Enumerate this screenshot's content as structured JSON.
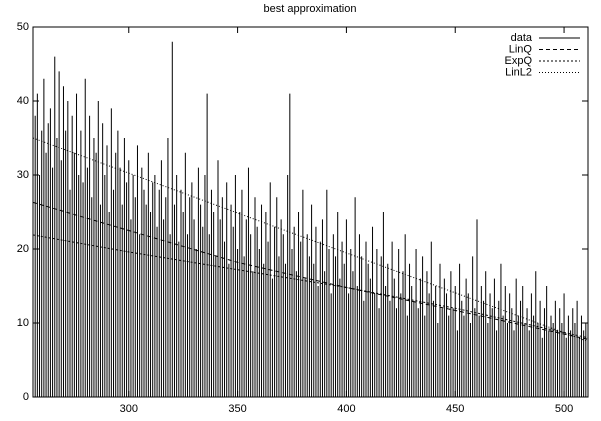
{
  "chart_data": {
    "type": "impulse-line",
    "title": "best approximation",
    "xlim": [
      256,
      511
    ],
    "ylim": [
      0,
      50
    ],
    "xticks": [
      300,
      350,
      400,
      450,
      500
    ],
    "yticks": [
      0,
      10,
      20,
      30,
      40,
      50
    ],
    "legend": "top-right",
    "series": [
      {
        "name": "data",
        "color": "#000000",
        "style": "impulses",
        "x": [
          256,
          257,
          258,
          259,
          260,
          261,
          262,
          263,
          264,
          265,
          266,
          267,
          268,
          269,
          270,
          271,
          272,
          273,
          274,
          275,
          276,
          277,
          278,
          279,
          280,
          281,
          282,
          283,
          284,
          285,
          286,
          287,
          288,
          289,
          290,
          291,
          292,
          293,
          294,
          295,
          296,
          297,
          298,
          299,
          300,
          301,
          302,
          303,
          304,
          305,
          306,
          307,
          308,
          309,
          310,
          311,
          312,
          313,
          314,
          315,
          316,
          317,
          318,
          319,
          320,
          321,
          322,
          323,
          324,
          325,
          326,
          327,
          328,
          329,
          330,
          331,
          332,
          333,
          334,
          335,
          336,
          337,
          338,
          339,
          340,
          341,
          342,
          343,
          344,
          345,
          346,
          347,
          348,
          349,
          350,
          351,
          352,
          353,
          354,
          355,
          356,
          357,
          358,
          359,
          360,
          361,
          362,
          363,
          364,
          365,
          366,
          367,
          368,
          369,
          370,
          371,
          372,
          373,
          374,
          375,
          376,
          377,
          378,
          379,
          380,
          381,
          382,
          383,
          384,
          385,
          386,
          387,
          388,
          389,
          390,
          391,
          392,
          393,
          394,
          395,
          396,
          397,
          398,
          399,
          400,
          401,
          402,
          403,
          404,
          405,
          406,
          407,
          408,
          409,
          410,
          411,
          412,
          413,
          414,
          415,
          416,
          417,
          418,
          419,
          420,
          421,
          422,
          423,
          424,
          425,
          426,
          427,
          428,
          429,
          430,
          431,
          432,
          433,
          434,
          435,
          436,
          437,
          438,
          439,
          440,
          441,
          442,
          443,
          444,
          445,
          446,
          447,
          448,
          449,
          450,
          451,
          452,
          453,
          454,
          455,
          456,
          457,
          458,
          459,
          460,
          461,
          462,
          463,
          464,
          465,
          466,
          467,
          468,
          469,
          470,
          471,
          472,
          473,
          474,
          475,
          476,
          477,
          478,
          479,
          480,
          481,
          482,
          483,
          484,
          485,
          486,
          487,
          488,
          489,
          490,
          491,
          492,
          493,
          494,
          495,
          496,
          497,
          498,
          499,
          500,
          501,
          502,
          503,
          504,
          505,
          506,
          507,
          508,
          509,
          510,
          511
        ],
        "values": [
          44,
          38,
          41,
          30,
          36,
          43,
          33,
          37,
          39,
          31,
          46,
          35,
          44,
          32,
          42,
          36,
          40,
          28,
          38,
          33,
          41,
          30,
          36,
          29,
          43,
          31,
          38,
          27,
          35,
          33,
          40,
          26,
          37,
          30,
          34,
          25,
          39,
          28,
          33,
          36,
          31,
          26,
          35,
          29,
          32,
          24,
          30,
          27,
          34,
          22,
          31,
          28,
          26,
          33,
          25,
          29,
          30,
          23,
          28,
          32,
          24,
          27,
          35,
          22,
          48,
          26,
          30,
          21,
          28,
          25,
          33,
          22,
          27,
          29,
          24,
          20,
          31,
          26,
          23,
          30,
          41,
          22,
          28,
          25,
          19,
          32,
          24,
          27,
          21,
          29,
          18,
          26,
          23,
          30,
          20,
          25,
          28,
          19,
          24,
          31,
          22,
          17,
          27,
          23,
          20,
          26,
          18,
          25,
          21,
          29,
          16,
          23,
          27,
          19,
          24,
          22,
          18,
          30,
          41,
          20,
          23,
          17,
          25,
          21,
          28,
          16,
          22,
          19,
          26,
          18,
          23,
          15,
          21,
          24,
          17,
          28,
          20,
          14,
          22,
          19,
          25,
          16,
          21,
          18,
          24,
          14,
          20,
          17,
          27,
          15,
          22,
          19,
          13,
          21,
          18,
          16,
          23,
          14,
          20,
          12,
          19,
          25,
          15,
          18,
          13,
          21,
          16,
          12,
          20,
          14,
          17,
          22,
          11,
          18,
          15,
          13,
          20,
          12,
          16,
          19,
          11,
          17,
          14,
          21,
          13,
          15,
          10,
          18,
          12,
          16,
          14,
          11,
          17,
          12,
          15,
          9,
          18,
          13,
          11,
          16,
          14,
          10,
          19,
          12,
          24,
          11,
          15,
          13,
          17,
          10,
          14,
          12,
          16,
          9,
          13,
          18,
          11,
          15,
          10,
          14,
          12,
          9,
          16,
          11,
          13,
          15,
          10,
          12,
          9,
          14,
          11,
          17,
          10,
          13,
          8,
          12,
          15,
          9,
          11,
          10,
          13,
          9,
          12,
          10,
          14,
          8,
          11,
          9,
          12,
          10,
          13,
          8,
          11,
          9,
          10,
          9
        ]
      },
      {
        "name": "LinQ",
        "color": "#000000",
        "style": "dashed",
        "x": [
          256,
          300,
          350,
          400,
          450,
          511
        ],
        "values": [
          26.3,
          22.5,
          18.2,
          14.8,
          11.7,
          7.8
        ]
      },
      {
        "name": "ExpQ",
        "color": "#000000",
        "style": "dotted",
        "x": [
          256,
          300,
          350,
          400,
          450,
          511
        ],
        "values": [
          21.9,
          19.6,
          17.2,
          14.8,
          12,
          8
        ]
      },
      {
        "name": "LinL2",
        "color": "#000000",
        "style": "fine-dotted",
        "x": [
          256,
          511
        ],
        "values": [
          35,
          7.5
        ]
      }
    ]
  }
}
